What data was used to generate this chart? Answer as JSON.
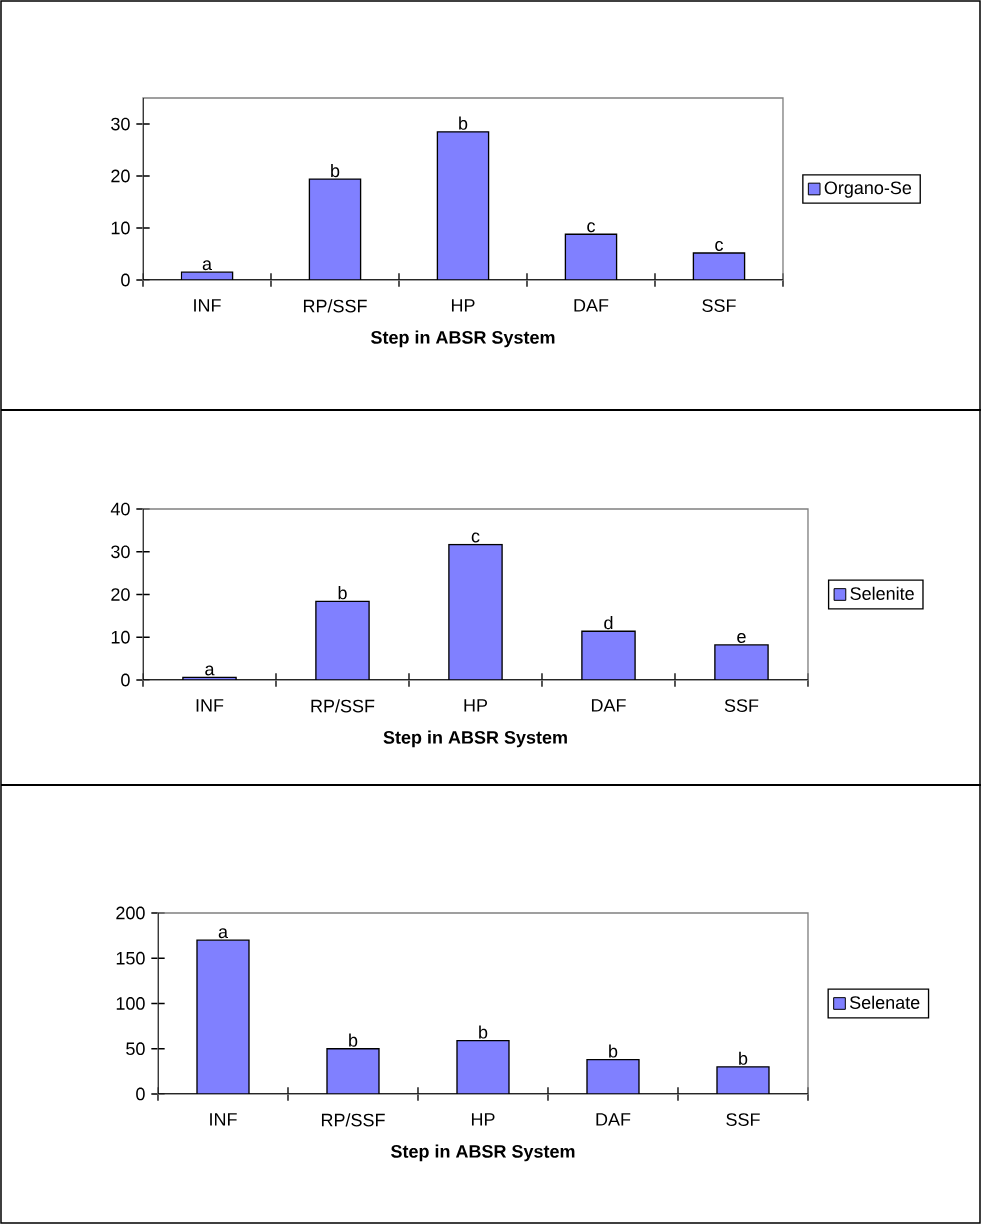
{
  "chart_data": [
    {
      "type": "bar",
      "categories": [
        "INF",
        "RP/SSF",
        "HP",
        "DAF",
        "SSF"
      ],
      "xlabel": "Step in ABSR System",
      "ylim": [
        0,
        35
      ],
      "yticks": [
        0,
        10,
        20,
        30
      ],
      "legend": "right",
      "series": [
        {
          "name": "Organo-Se",
          "color": "#8080ff",
          "values": [
            1.5,
            19.4,
            28.5,
            8.8,
            5.2
          ]
        }
      ],
      "annotations": [
        {
          "text": "a",
          "x": "INF",
          "y": 1.5
        },
        {
          "text": "b",
          "x": "RP/SSF",
          "y": 19.4
        },
        {
          "text": "b",
          "x": "HP",
          "y": 28.5
        },
        {
          "text": "c",
          "x": "DAF",
          "y": 8.8
        },
        {
          "text": "c",
          "x": "SSF",
          "y": 5.2
        }
      ]
    },
    {
      "type": "bar",
      "categories": [
        "INF",
        "RP/SSF",
        "HP",
        "DAF",
        "SSF"
      ],
      "xlabel": "Step in ABSR System",
      "ylim": [
        0,
        40
      ],
      "yticks": [
        0,
        10,
        20,
        30,
        40
      ],
      "legend": "right",
      "series": [
        {
          "name": "Selenite",
          "color": "#8080ff",
          "values": [
            0.6,
            18.4,
            31.7,
            11.4,
            8.2
          ]
        }
      ],
      "annotations": [
        {
          "text": "a",
          "x": "INF",
          "y": 0.6
        },
        {
          "text": "b",
          "x": "RP/SSF",
          "y": 18.4
        },
        {
          "text": "c",
          "x": "HP",
          "y": 31.7
        },
        {
          "text": "d",
          "x": "DAF",
          "y": 11.4
        },
        {
          "text": "e",
          "x": "SSF",
          "y": 8.2
        }
      ]
    },
    {
      "type": "bar",
      "categories": [
        "INF",
        "RP/SSF",
        "HP",
        "DAF",
        "SSF"
      ],
      "xlabel": "Step in ABSR System",
      "ylim": [
        0,
        200
      ],
      "yticks": [
        0,
        50,
        100,
        150,
        200
      ],
      "legend": "right",
      "series": [
        {
          "name": "Selenate",
          "color": "#8080ff",
          "values": [
            170,
            50,
            59,
            38,
            30
          ]
        }
      ],
      "annotations": [
        {
          "text": "a",
          "x": "INF",
          "y": 170
        },
        {
          "text": "b",
          "x": "RP/SSF",
          "y": 50
        },
        {
          "text": "b",
          "x": "HP",
          "y": 59
        },
        {
          "text": "b",
          "x": "DAF",
          "y": 38
        },
        {
          "text": "b",
          "x": "SSF",
          "y": 30
        }
      ]
    }
  ]
}
